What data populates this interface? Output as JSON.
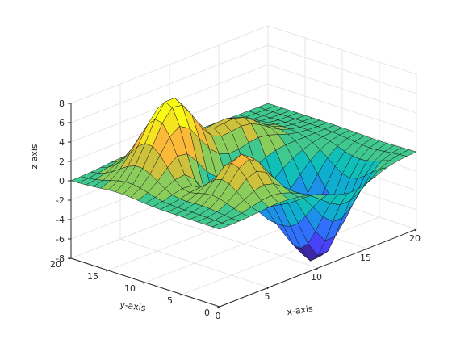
{
  "chart_data": {
    "type": "surface",
    "title": "",
    "xlabel": "x-axis",
    "ylabel": "y-axis",
    "zlabel": "z axis",
    "xlim": [
      0,
      20
    ],
    "ylim": [
      0,
      20
    ],
    "zlim": [
      -8,
      8
    ],
    "x_ticks": [
      "0",
      "5",
      "10",
      "15",
      "20"
    ],
    "y_ticks": [
      "0",
      "5",
      "10",
      "15",
      "20"
    ],
    "z_ticks": [
      "-8",
      "-6",
      "-4",
      "-2",
      "0",
      "2",
      "4",
      "6",
      "8"
    ],
    "grid": true,
    "colormap": "parula",
    "colors": {
      "parula": [
        "#3e26a8",
        "#4743f8",
        "#2f71fb",
        "#1d90e8",
        "#0faed1",
        "#10bfb8",
        "#41c88f",
        "#8bcd5c",
        "#cec23d",
        "#fab939",
        "#f6e421",
        "#f9fb15"
      ],
      "edge": "#1a1a1a",
      "grid": "#e6e6e6",
      "axis": "#262626"
    },
    "x": [
      0,
      1,
      2,
      3,
      4,
      5,
      6,
      7,
      8,
      9,
      10,
      11,
      12,
      13,
      14,
      15,
      16,
      17,
      18,
      19,
      20
    ],
    "y": [
      0,
      1,
      2,
      3,
      4,
      5,
      6,
      7,
      8,
      9,
      10,
      11,
      12,
      13,
      14,
      15,
      16,
      17,
      18,
      19,
      20
    ],
    "surface_components": [
      {
        "amplitude": 8.1,
        "x_center": 5.5,
        "y_center": 13.5,
        "x_spread": 2.2,
        "y_spread": 2.6
      },
      {
        "amplitude": 3.4,
        "x_center": 12.0,
        "y_center": 13.5,
        "x_spread": 2.3,
        "y_spread": 2.6
      },
      {
        "amplitude": -9.8,
        "x_center": 13.5,
        "y_center": 5.0,
        "x_spread": 2.2,
        "y_spread": 2.6
      },
      {
        "amplitude": 4.3,
        "x_center": 6.0,
        "y_center": 5.0,
        "x_spread": 1.8,
        "y_spread": 2.2
      },
      {
        "amplitude": -5.0,
        "x_center": 6.8,
        "y_center": 9.5,
        "x_spread": 1.7,
        "y_spread": 1.8
      },
      {
        "amplitude": -4.0,
        "x_center": 11.0,
        "y_center": 9.5,
        "x_spread": 2.0,
        "y_spread": 2.0
      }
    ]
  }
}
